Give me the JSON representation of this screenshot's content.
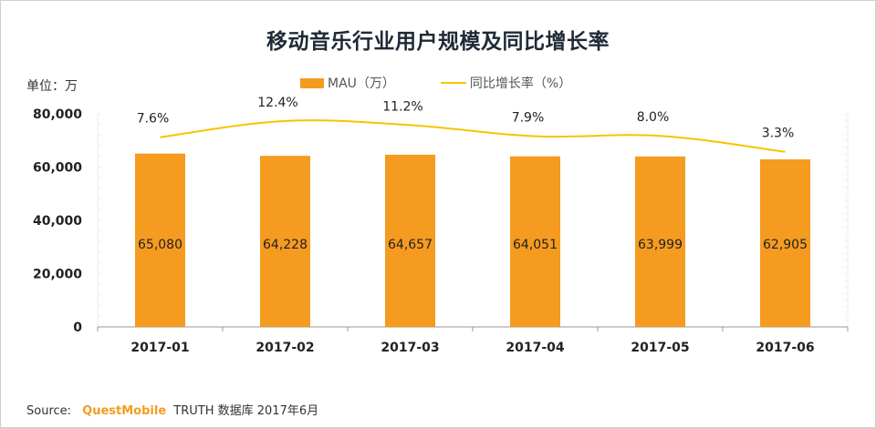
{
  "chart_data": {
    "type": "bar",
    "title": "移动音乐行业用户规模及同比增长率",
    "unit_label": "单位：万",
    "xlabel": "",
    "ylabel": "",
    "categories": [
      "2017-01",
      "2017-02",
      "2017-03",
      "2017-04",
      "2017-05",
      "2017-06"
    ],
    "ylim": [
      0,
      80000
    ],
    "yticks": [
      0,
      20000,
      40000,
      60000,
      80000
    ],
    "ytick_labels": [
      "0",
      "20,000",
      "40,000",
      "60,000",
      "80,000"
    ],
    "grid": false,
    "legend_position": "top-center",
    "series": [
      {
        "name": "MAU（万）",
        "type": "bar",
        "axis": "left",
        "color": "#f59b20",
        "values": [
          65080,
          64228,
          64657,
          64051,
          63999,
          62905
        ],
        "labels": [
          "65,080",
          "64,228",
          "64,657",
          "64,051",
          "63,999",
          "62,905"
        ]
      },
      {
        "name": "同比增长率（%）",
        "type": "line",
        "axis": "right",
        "smooth": true,
        "color": "#f5c400",
        "values": [
          7.6,
          12.4,
          11.2,
          7.9,
          8.0,
          3.3
        ],
        "labels": [
          "7.6%",
          "12.4%",
          "11.2%",
          "7.9%",
          "8.0%",
          "3.3%"
        ]
      }
    ]
  },
  "legend": {
    "bar_label": "MAU（万）",
    "line_label": "同比增长率（%）"
  },
  "source": {
    "prefix": "Source:",
    "brand": "QuestMobile",
    "text": "TRUTH 数据库 2017年6月"
  },
  "colors": {
    "bar": "#f59b20",
    "line": "#f5c400",
    "axis": "#888888",
    "text": "#222222"
  }
}
